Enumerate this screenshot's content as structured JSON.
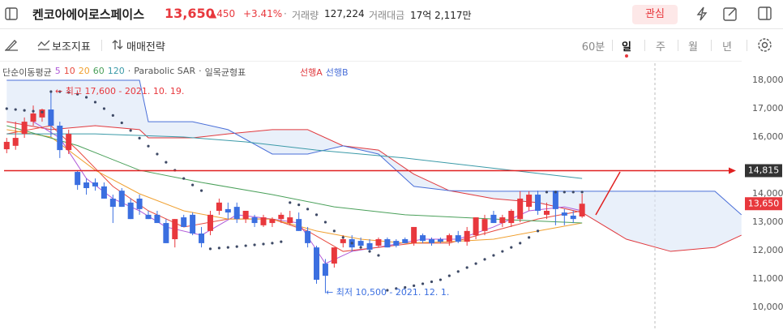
{
  "header": {
    "title": "켄코아에어로스페이스",
    "price": "13,650",
    "change": "▲450",
    "change_rate": "+3.41%",
    "separator": "·",
    "volume_label": "거래량",
    "volume": "127,224",
    "amount_label": "거래대금",
    "amount": "17억 2,117만",
    "watch_button": "관심"
  },
  "toolbar": {
    "indicators": "보조지표",
    "strategy": "매매전략",
    "periods": [
      "60분",
      "일",
      "주",
      "월",
      "년"
    ],
    "selected_period": 1
  },
  "legend": {
    "ma_label": "단순이동평균",
    "sep": "·",
    "sar_label": "Parabolic SAR",
    "ichimoku_label": "일목균형표"
  },
  "chart_data": {
    "type": "candlestick",
    "up_color": "#e8383d",
    "down_color": "#3b6fe0",
    "xlim": [
      -0.3,
      83.3
    ],
    "ylim": [
      9200,
      18600
    ],
    "yticks": [
      {
        "value": 10000,
        "label": "10,000"
      },
      {
        "value": 11000,
        "label": "11,000"
      },
      {
        "value": 12000,
        "label": "12,000"
      },
      {
        "value": 13000,
        "label": "13,000"
      },
      {
        "value": 14000,
        "label": "14,000"
      },
      {
        "value": 16000,
        "label": "16,000"
      },
      {
        "value": 17000,
        "label": "17,000"
      },
      {
        "value": 18000,
        "label": "18,000"
      }
    ],
    "grid": false,
    "open": [
      15570,
      15690,
      16110,
      16540,
      16690,
      16970,
      16400,
      15540,
      14770,
      14400,
      14400,
      14260,
      13830,
      14110,
      13690,
      13830,
      13260,
      13260,
      12970,
      12400,
      13170,
      13260,
      12600,
      12690,
      13400,
      13460,
      13540,
      13110,
      13170,
      12890,
      12970,
      13110,
      12970,
      13110,
      12690,
      12110,
      11540,
      11540,
      12260,
      12400,
      12340,
      12260,
      12170,
      12400,
      12340,
      12400,
      12260,
      12540,
      12400,
      12400,
      12310,
      12540,
      12310,
      12540,
      12690,
      13260,
      12970,
      12970,
      13110,
      13540,
      13970,
      13260,
      14110,
      13340,
      13230,
      13200
    ],
    "high": [
      15970,
      16540,
      16690,
      17110,
      17000,
      17600,
      16540,
      16260,
      14830,
      14540,
      14540,
      14400,
      13970,
      14200,
      13830,
      13970,
      13400,
      13400,
      13110,
      13110,
      13260,
      13340,
      12830,
      13400,
      13830,
      13690,
      13690,
      13400,
      13260,
      13260,
      13170,
      13340,
      13400,
      13340,
      12830,
      12170,
      11700,
      12110,
      12540,
      12540,
      12460,
      12400,
      12460,
      12460,
      12400,
      12460,
      12830,
      12600,
      12460,
      12460,
      12600,
      12690,
      12830,
      13170,
      13260,
      13400,
      13260,
      13460,
      14090,
      14090,
      14110,
      13690,
      14110,
      13460,
      13400,
      14000
    ],
    "low": [
      15430,
      15550,
      15970,
      16400,
      16540,
      16000,
      15260,
      15400,
      14140,
      13970,
      14110,
      13830,
      12970,
      13540,
      13110,
      13260,
      13110,
      12970,
      12260,
      12110,
      12830,
      12540,
      12110,
      12540,
      13260,
      13110,
      12970,
      12970,
      12830,
      12830,
      12830,
      12970,
      12890,
      12690,
      12110,
      10830,
      10500,
      11400,
      12110,
      11970,
      12110,
      11970,
      12110,
      12110,
      12110,
      12260,
      12170,
      12260,
      12170,
      12260,
      12170,
      12260,
      12170,
      12400,
      12540,
      12970,
      12830,
      12830,
      13000,
      13400,
      13260,
      13110,
      12890,
      12890,
      12970,
      13150
    ],
    "close": [
      15830,
      15970,
      16540,
      16830,
      16970,
      16400,
      15540,
      16110,
      14310,
      14200,
      14260,
      13830,
      13540,
      13540,
      13110,
      13460,
      13110,
      12970,
      12260,
      13110,
      12830,
      12600,
      12260,
      13260,
      13690,
      13340,
      13110,
      13400,
      12970,
      13170,
      13110,
      13260,
      13170,
      12690,
      12260,
      10970,
      11110,
      12110,
      12400,
      12110,
      12170,
      12030,
      12400,
      12110,
      12170,
      12260,
      12830,
      12340,
      12260,
      12310,
      12540,
      12310,
      12690,
      13170,
      13110,
      12970,
      13170,
      13400,
      13830,
      13970,
      13400,
      13400,
      13460,
      13230,
      13110,
      13650
    ],
    "overlays": [
      {
        "name": "5",
        "color": "#b05ad8",
        "x": [
          3,
          6,
          9,
          12,
          15,
          18,
          22,
          26,
          30,
          33,
          36,
          39,
          43,
          47,
          51,
          55,
          59,
          63,
          65
        ],
        "values": [
          16540,
          15970,
          14540,
          13830,
          13400,
          12830,
          12540,
          13260,
          13110,
          12970,
          11540,
          11970,
          12170,
          12400,
          12400,
          12830,
          13400,
          13540,
          13400
        ]
      },
      {
        "name": "10",
        "color": "#e84a3f",
        "x": [
          0,
          5,
          8,
          12,
          16,
          20,
          25,
          30,
          34,
          38,
          42,
          46,
          50,
          55,
          60,
          65
        ],
        "values": [
          16110,
          16400,
          15540,
          14260,
          13400,
          12830,
          13110,
          13110,
          12690,
          11970,
          12110,
          12260,
          12260,
          12690,
          13110,
          13400
        ]
      },
      {
        "name": "20",
        "color": "#f0a030",
        "x": [
          0,
          5,
          10,
          15,
          20,
          25,
          30,
          35,
          40,
          45,
          50,
          55,
          60,
          65
        ],
        "values": [
          16260,
          16000,
          14830,
          14000,
          13400,
          13110,
          13110,
          12690,
          12400,
          12260,
          12310,
          12400,
          12690,
          12970
        ]
      },
      {
        "name": "60",
        "color": "#4aa05a",
        "x": [
          0,
          8,
          15,
          22,
          30,
          37,
          45,
          55,
          65
        ],
        "values": [
          16400,
          15700,
          14830,
          14400,
          13970,
          13540,
          13260,
          13110,
          12970
        ]
      },
      {
        "name": "120",
        "color": "#3b9aa8",
        "x": [
          0,
          10,
          20,
          27,
          35,
          45,
          55,
          65
        ],
        "values": [
          16110,
          16110,
          16000,
          15830,
          15540,
          15260,
          14900,
          14540
        ]
      }
    ],
    "spans": [
      {
        "name": "선행A",
        "color": "#e0393e",
        "x": [
          0,
          5,
          10,
          15,
          16,
          21,
          25,
          30,
          34,
          38,
          42,
          46,
          50,
          55,
          60,
          65,
          70,
          75,
          80,
          83
        ],
        "values": [
          16540,
          16260,
          16400,
          16260,
          15970,
          15970,
          16110,
          16260,
          16260,
          15690,
          15540,
          14690,
          14110,
          13830,
          13690,
          13340,
          12400,
          11970,
          12110,
          12540
        ]
      },
      {
        "name": "선행B",
        "color": "#4a6fd8",
        "x": [
          0,
          5,
          10,
          15,
          16,
          21,
          25,
          30,
          34,
          38,
          42,
          46,
          50,
          55,
          60,
          65,
          70,
          75,
          80,
          83
        ],
        "values": [
          18000,
          18000,
          18000,
          18000,
          16540,
          16540,
          16260,
          15400,
          15400,
          15690,
          15400,
          14260,
          14110,
          14090,
          14090,
          14090,
          14090,
          14090,
          14090,
          13260
        ]
      }
    ],
    "cloud_color": "#dbe6f7",
    "sar": {
      "color": "#3e4a66",
      "values": [
        17000,
        16970,
        16940,
        16910,
        16880,
        17600,
        17600,
        17570,
        17510,
        17400,
        17230,
        17000,
        16760,
        16500,
        16230,
        15960,
        15680,
        15400,
        15110,
        14830,
        14540,
        14310,
        14110,
        12060,
        12090,
        12110,
        12140,
        12170,
        12200,
        12230,
        12260,
        12310,
        13690,
        13610,
        13460,
        13260,
        13000,
        12690,
        12460,
        12260,
        12110,
        11970,
        11830,
        10600,
        10660,
        10700,
        10760,
        10830,
        10900,
        10970,
        11110,
        11260,
        11400,
        11540,
        11690,
        11830,
        11970,
        12110,
        12260,
        12460,
        12690,
        14060,
        14060,
        14060,
        14060,
        14060
      ]
    },
    "high_note": "← 최고 17,600 - 2021. 10. 19.",
    "low_note": "← 최저 10,500 - 2021. 12. 1.",
    "level_line": {
      "value": 14815,
      "label": "14,815",
      "color": "#e02020"
    },
    "last_price": {
      "value": 13650,
      "label": "13,650"
    }
  }
}
